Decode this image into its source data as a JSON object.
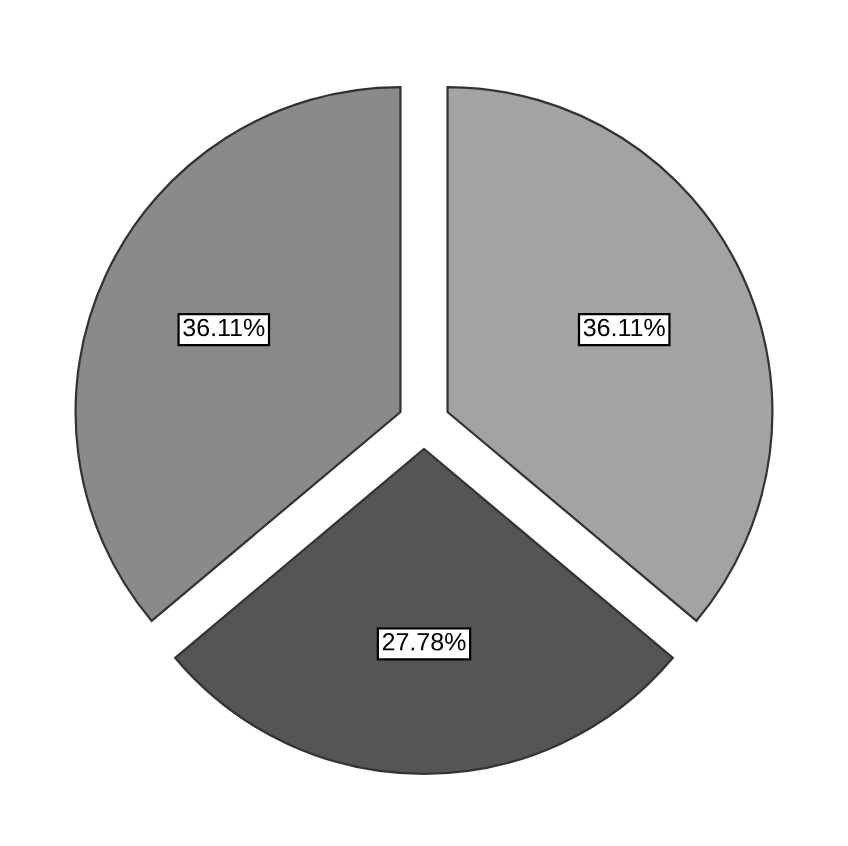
{
  "chart_data": {
    "type": "pie",
    "categories": [
      null,
      null,
      null
    ],
    "values": [
      36.11,
      27.78,
      36.11
    ],
    "colors": [
      "#a3a3a3",
      "#555555",
      "#8a8a8a"
    ],
    "value_labels": [
      "36.11%",
      "27.78%",
      "36.11%"
    ]
  }
}
